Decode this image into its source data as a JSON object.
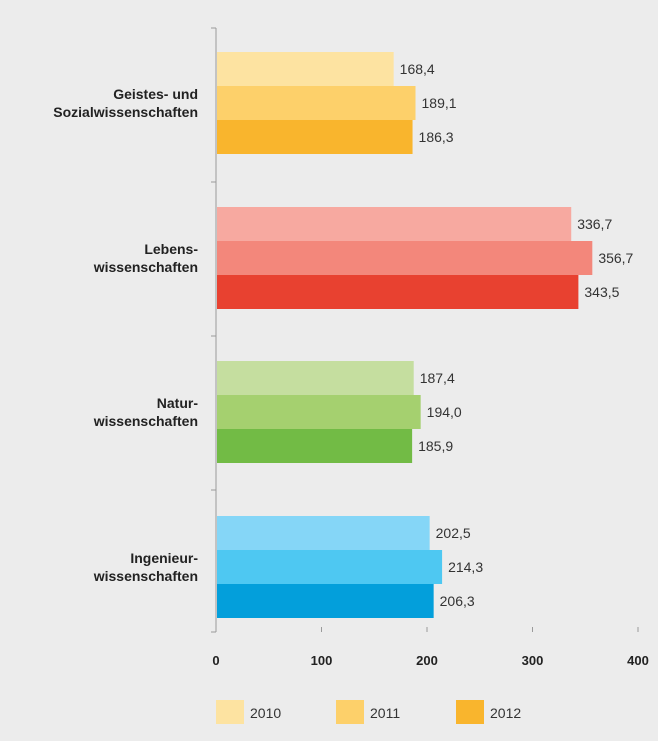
{
  "chart_data": {
    "type": "bar",
    "orientation": "horizontal",
    "categories": [
      [
        "Geistes- und",
        "Sozialwissenschaften"
      ],
      [
        "Lebens-",
        "wissenschaften"
      ],
      [
        "Natur-",
        "wissenschaften"
      ],
      [
        "Ingenieur-",
        "wissenschaften"
      ]
    ],
    "series": [
      {
        "name": "2010",
        "values": [
          168.4,
          336.7,
          187.4,
          202.5
        ],
        "value_labels": [
          "168,4",
          "336,7",
          "187,4",
          "202,5"
        ]
      },
      {
        "name": "2011",
        "values": [
          189.1,
          356.7,
          194.0,
          214.3
        ],
        "value_labels": [
          "189,1",
          "356,7",
          "194,0",
          "214,3"
        ]
      },
      {
        "name": "2012",
        "values": [
          186.3,
          343.5,
          185.9,
          206.3
        ],
        "value_labels": [
          "186,3",
          "343,5",
          "185,9",
          "206,3"
        ]
      }
    ],
    "category_colors": [
      [
        "#fde3a1",
        "#fdd06a",
        "#f9b52d"
      ],
      [
        "#f7a9a0",
        "#f3877b",
        "#e84130"
      ],
      [
        "#c5de9f",
        "#a5d06f",
        "#72bb45"
      ],
      [
        "#85d6f7",
        "#4ec8f2",
        "#039fdb"
      ]
    ],
    "legend_colors": [
      "#fde3a1",
      "#fdd06a",
      "#f9b52d"
    ],
    "xlim": [
      0,
      400
    ],
    "xticks": [
      0,
      100,
      200,
      300,
      400
    ],
    "xtick_labels": [
      "0",
      "100",
      "200",
      "300",
      "400"
    ],
    "grid": false,
    "legend_position": "bottom"
  }
}
